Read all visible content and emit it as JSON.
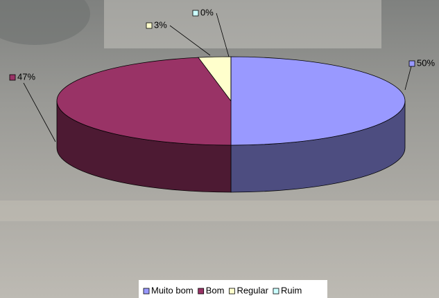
{
  "chart_data": {
    "type": "pie",
    "categories": [
      "Muito bom",
      "Bom",
      "Regular",
      "Ruim"
    ],
    "values": [
      50,
      47,
      3,
      0
    ],
    "value_labels": [
      "50%",
      "47%",
      "3%",
      "0%"
    ],
    "colors": [
      "#9999ff",
      "#993366",
      "#ffffcc",
      "#ccffff"
    ]
  }
}
